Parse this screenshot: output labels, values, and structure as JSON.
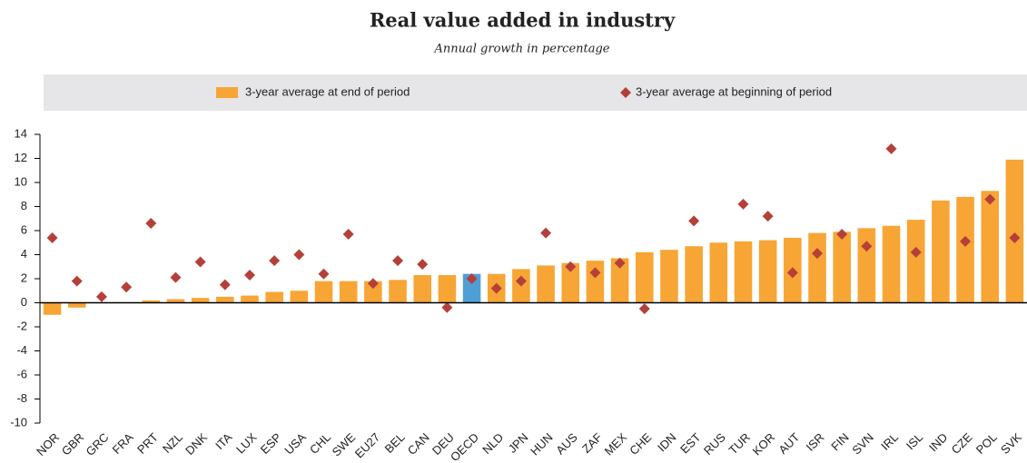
{
  "chart_data": {
    "type": "bar",
    "title": "Real value added in industry",
    "subtitle": "Annual growth in percentage",
    "categories": [
      "NOR",
      "GBR",
      "GRC",
      "FRA",
      "PRT",
      "NZL",
      "DNK",
      "ITA",
      "LUX",
      "ESP",
      "USA",
      "CHL",
      "SWE",
      "EU27",
      "BEL",
      "CAN",
      "DEU",
      "OECD",
      "NLD",
      "JPN",
      "HUN",
      "AUS",
      "ZAF",
      "MEX",
      "CHE",
      "IDN",
      "EST",
      "RUS",
      "TUR",
      "KOR",
      "AUT",
      "ISR",
      "FIN",
      "SVN",
      "IRL",
      "ISL",
      "IND",
      "CZE",
      "POL",
      "SVK"
    ],
    "series": [
      {
        "name": "3-year average at end of period",
        "type": "bar",
        "color": "#f7a535",
        "colors": [
          "#f7a535",
          "#f7a535",
          "#f7a535",
          "#f7a535",
          "#f7a535",
          "#f7a535",
          "#f7a535",
          "#f7a535",
          "#f7a535",
          "#f7a535",
          "#f7a535",
          "#f7a535",
          "#f7a535",
          "#f7a535",
          "#f7a535",
          "#f7a535",
          "#f7a535",
          "#4f9fd6",
          "#f7a535",
          "#f7a535",
          "#f7a535",
          "#f7a535",
          "#f7a535",
          "#f7a535",
          "#f7a535",
          "#f7a535",
          "#f7a535",
          "#f7a535",
          "#f7a535",
          "#f7a535",
          "#f7a535",
          "#f7a535",
          "#f7a535",
          "#f7a535",
          "#f7a535",
          "#f7a535",
          "#f7a535",
          "#f7a535",
          "#f7a535",
          "#f7a535"
        ],
        "values": [
          -1.0,
          -0.4,
          0,
          0,
          0.2,
          0.3,
          0.4,
          0.5,
          0.6,
          0.9,
          1.0,
          1.8,
          1.8,
          1.8,
          1.9,
          2.3,
          2.3,
          2.4,
          2.4,
          2.8,
          3.1,
          3.3,
          3.5,
          3.7,
          4.2,
          4.4,
          4.7,
          5.0,
          5.1,
          5.2,
          5.4,
          5.8,
          5.9,
          6.2,
          6.4,
          6.9,
          8.5,
          8.8,
          9.3,
          11.9
        ]
      },
      {
        "name": "3-year average at beginning of period",
        "type": "scatter",
        "color": "#b5403a",
        "values": [
          5.4,
          1.8,
          0.5,
          1.3,
          6.6,
          2.1,
          3.4,
          1.5,
          2.3,
          3.5,
          4.0,
          2.4,
          5.7,
          1.6,
          3.5,
          3.2,
          -0.4,
          2.0,
          1.2,
          1.8,
          5.8,
          3.0,
          2.5,
          3.3,
          -0.5,
          null,
          6.8,
          null,
          8.2,
          7.2,
          2.5,
          4.1,
          5.7,
          4.7,
          12.8,
          4.2,
          null,
          5.1,
          8.6,
          5.4
        ]
      }
    ],
    "ylim": [
      -10,
      14
    ],
    "yticks": [
      -10,
      -8,
      -6,
      -4,
      -2,
      0,
      2,
      4,
      6,
      8,
      10,
      12,
      14
    ]
  }
}
